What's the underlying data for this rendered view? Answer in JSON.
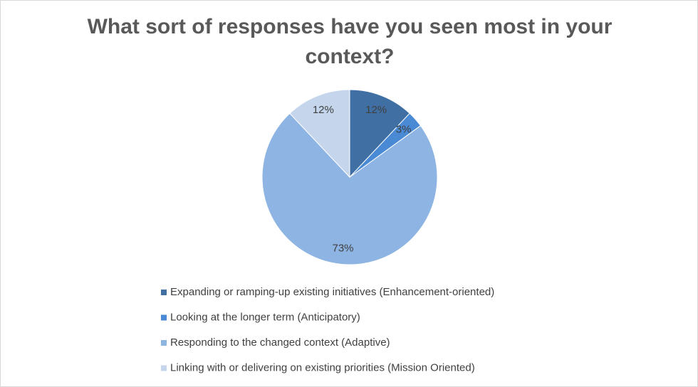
{
  "chart_data": {
    "type": "pie",
    "title": "What sort of responses have you seen most in your context?",
    "categories": [
      "Expanding or ramping-up existing initiatives (Enhancement-oriented)",
      "Looking at the longer term (Anticipatory)",
      "Responding to the changed context (Adaptive)",
      "Linking with or delivering on existing priorities (Mission Oriented)"
    ],
    "values": [
      12,
      3,
      73,
      12
    ],
    "value_labels": [
      "12%",
      "3%",
      "73%",
      "12%"
    ],
    "colors": [
      "#3f6fa3",
      "#4a8ad4",
      "#8db4e2",
      "#c4d5ec"
    ]
  }
}
